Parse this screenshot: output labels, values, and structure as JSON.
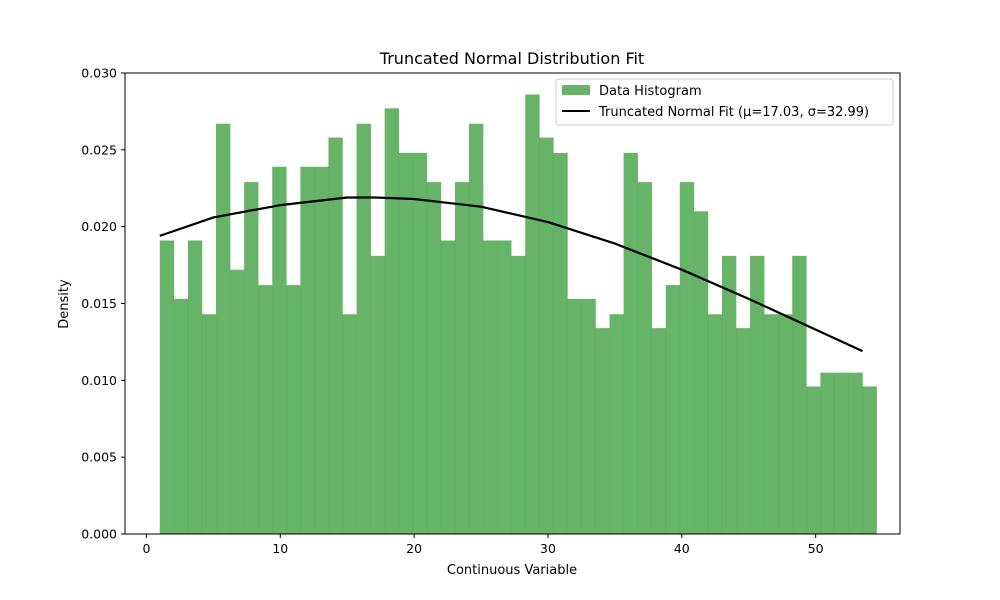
{
  "chart_data": {
    "type": "bar",
    "title": "Truncated Normal Distribution Fit",
    "xlabel": "Continuous Variable",
    "ylabel": "Density",
    "xlim": [
      -1.6,
      56.3
    ],
    "ylim": [
      0,
      0.03
    ],
    "xticks": [
      0,
      10,
      20,
      30,
      40,
      50
    ],
    "yticks": [
      0.0,
      0.005,
      0.01,
      0.015,
      0.02,
      0.025,
      0.03
    ],
    "ytick_labels": [
      "0.000",
      "0.005",
      "0.010",
      "0.015",
      "0.020",
      "0.025",
      "0.030"
    ],
    "grid": false,
    "legend_placement": "top-right",
    "histogram": {
      "name": "Data Histogram",
      "color": "#4ca64c",
      "bin_start": 1.0,
      "bin_width": 1.05,
      "values": [
        0.0191,
        0.0153,
        0.0191,
        0.0143,
        0.0267,
        0.0172,
        0.0229,
        0.0162,
        0.0239,
        0.0162,
        0.0239,
        0.0239,
        0.0258,
        0.0143,
        0.0267,
        0.0181,
        0.0277,
        0.0248,
        0.0248,
        0.0229,
        0.0191,
        0.0229,
        0.0267,
        0.0191,
        0.0191,
        0.0181,
        0.0286,
        0.0258,
        0.0248,
        0.0153,
        0.0153,
        0.0134,
        0.0143,
        0.0248,
        0.0229,
        0.0134,
        0.0162,
        0.0229,
        0.021,
        0.0143,
        0.0181,
        0.0134,
        0.0181,
        0.0143,
        0.0143,
        0.0181,
        0.0096,
        0.0105,
        0.0105,
        0.0105,
        0.0096
      ]
    },
    "fit": {
      "name": "Truncated Normal Fit (μ=17.03, σ=32.99)",
      "color": "#000000",
      "x": [
        1,
        5,
        10,
        15,
        17,
        20,
        25,
        30,
        35,
        40,
        45,
        50,
        53.5
      ],
      "y": [
        0.0194,
        0.0206,
        0.0214,
        0.0219,
        0.0219,
        0.0218,
        0.0213,
        0.0203,
        0.0189,
        0.0172,
        0.0153,
        0.0133,
        0.0119
      ]
    }
  }
}
